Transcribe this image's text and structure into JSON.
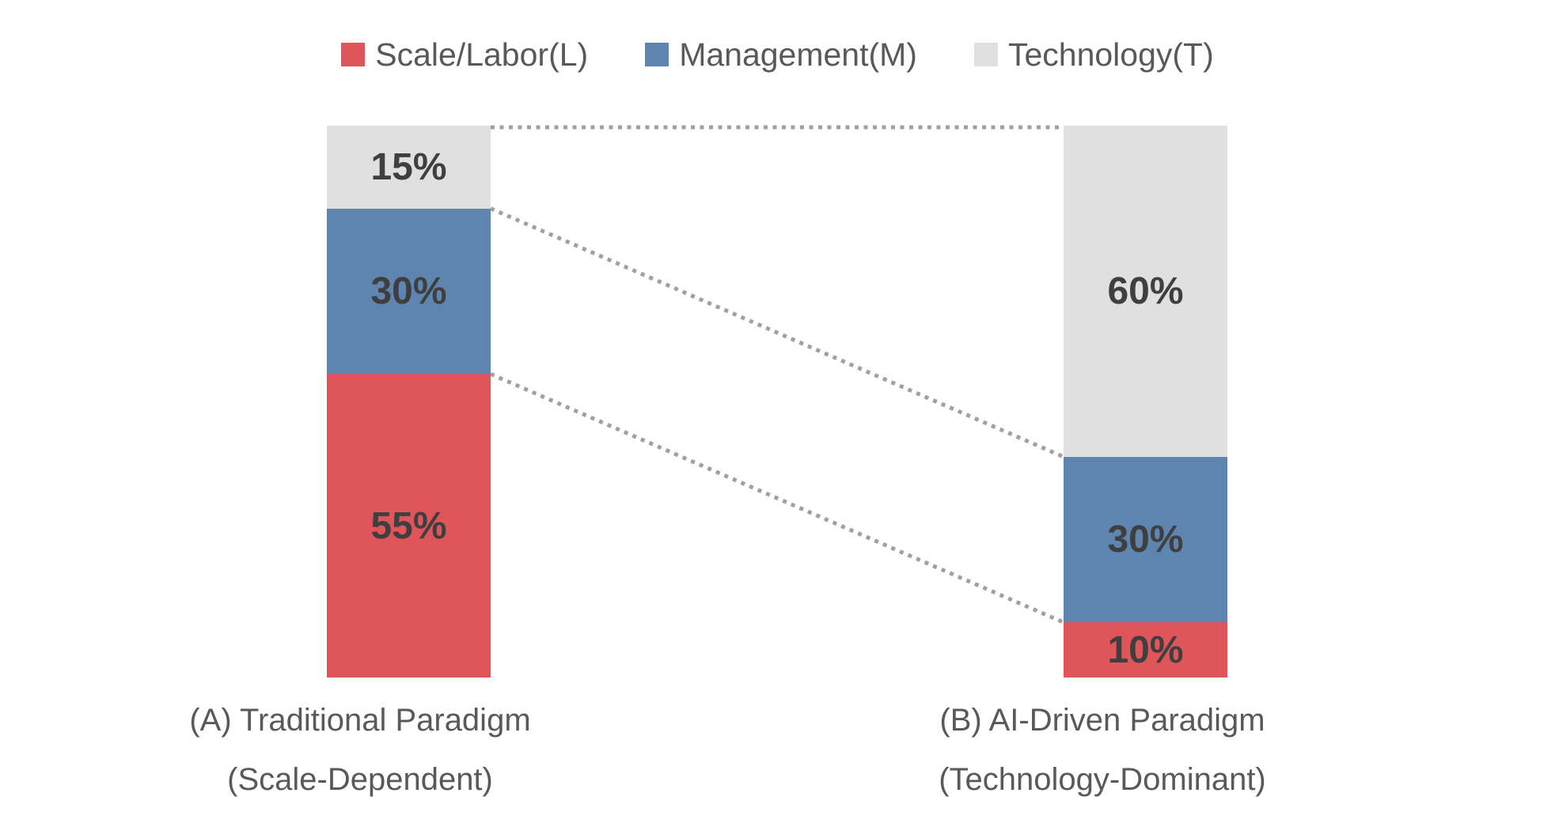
{
  "legend": {
    "items": [
      {
        "label": "Scale/Labor(L)",
        "color": "#df555a"
      },
      {
        "label": "Management(M)",
        "color": "#5e84b0"
      },
      {
        "label": "Technology(T)",
        "color": "#e0e0e0"
      }
    ]
  },
  "chart_data": {
    "type": "bar",
    "subtype": "100%-stacked-columns-with-dotted-connector-lines",
    "categories": [
      "(A) Traditional Paradigm (Scale-Dependent)",
      "(B) AI-Driven Paradigm (Technology-Dominant)"
    ],
    "series": [
      {
        "name": "Scale/Labor(L)",
        "color": "#df555a",
        "values": [
          55,
          10
        ]
      },
      {
        "name": "Management(M)",
        "color": "#5e84b0",
        "values": [
          30,
          30
        ]
      },
      {
        "name": "Technology(T)",
        "color": "#e0e0e0",
        "values": [
          15,
          60
        ]
      }
    ],
    "stack_order_top_to_bottom": [
      "Technology(T)",
      "Management(M)",
      "Scale/Labor(L)"
    ],
    "value_suffix": "%",
    "ylim": [
      0,
      100
    ],
    "grid": false,
    "axes_visible": false,
    "legend_position": "top-center",
    "connector_lines": "dotted gray lines join the segment boundaries (top, T/M, M/L) of the two columns"
  },
  "bars": [
    {
      "name": "traditional",
      "label_line1": "(A) Traditional Paradigm",
      "label_line2": "(Scale-Dependent)",
      "segments": [
        {
          "series": "Technology(T)",
          "value": 15,
          "label": "15%",
          "color": "#e0e0e0"
        },
        {
          "series": "Management(M)",
          "value": 30,
          "label": "30%",
          "color": "#5e84b0"
        },
        {
          "series": "Scale/Labor(L)",
          "value": 55,
          "label": "55%",
          "color": "#df555a"
        }
      ]
    },
    {
      "name": "ai-driven",
      "label_line1": "(B) AI-Driven Paradigm",
      "label_line2": "(Technology-Dominant)",
      "segments": [
        {
          "series": "Technology(T)",
          "value": 60,
          "label": "60%",
          "color": "#e0e0e0"
        },
        {
          "series": "Management(M)",
          "value": 30,
          "label": "30%",
          "color": "#5e84b0"
        },
        {
          "series": "Scale/Labor(L)",
          "value": 10,
          "label": "10%",
          "color": "#df555a"
        }
      ]
    }
  ],
  "styles": {
    "background": "#ffffff",
    "percent_label_color": "#3f3f3f",
    "axis_label_color": "#595959",
    "legend_text_color": "#595959",
    "connector_color": "#a0a0a0"
  }
}
